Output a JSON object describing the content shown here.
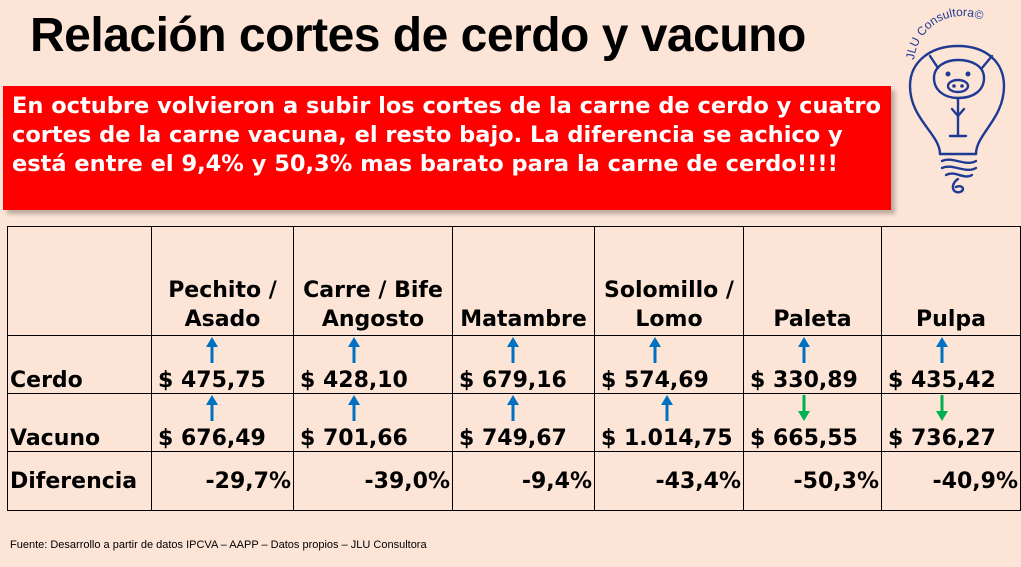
{
  "title": "Relación cortes de cerdo y vacuno",
  "banner_text": "En octubre volvieron a subir los cortes de la carne de cerdo y cuatro cortes de la carne vacuna, el resto bajo. La diferencia se achico y está entre el 9,4% y 50,3% mas barato para la carne de cerdo!!!!",
  "logo": {
    "text": "JLU Consultora©",
    "icon": "pig-lightbulb-logo",
    "color": "#1f3a93"
  },
  "table": {
    "columns": [
      "Pechito / Asado",
      "Carre / Bife Angosto",
      "Matambre",
      "Solomillo / Lomo",
      "Paleta",
      "Pulpa"
    ],
    "rows": [
      {
        "label": "Cerdo",
        "values": [
          "$ 475,75",
          "$ 428,10",
          "$ 679,16",
          "$ 574,69",
          "$ 330,89",
          "$ 435,42"
        ],
        "trend": [
          "up",
          "up",
          "up",
          "up",
          "up",
          "up"
        ]
      },
      {
        "label": "Vacuno",
        "values": [
          "$ 676,49",
          "$ 701,66",
          "$ 749,67",
          "$ 1.014,75",
          "$ 665,55",
          "$ 736,27"
        ],
        "trend": [
          "up",
          "up",
          "up",
          "up",
          "down",
          "down"
        ]
      },
      {
        "label": "Diferencia",
        "values": [
          "-29,7%",
          "-39,0%",
          "-9,4%",
          "-43,4%",
          "-50,3%",
          "-40,9%"
        ]
      }
    ]
  },
  "colors": {
    "up_arrow": "#0070c0",
    "down_arrow": "#00b050",
    "banner": "#ff0000",
    "background": "#fce4d6"
  },
  "source": "Fuente: Desarrollo a partir de datos IPCVA – AAPP  – Datos propios – JLU Consultora"
}
